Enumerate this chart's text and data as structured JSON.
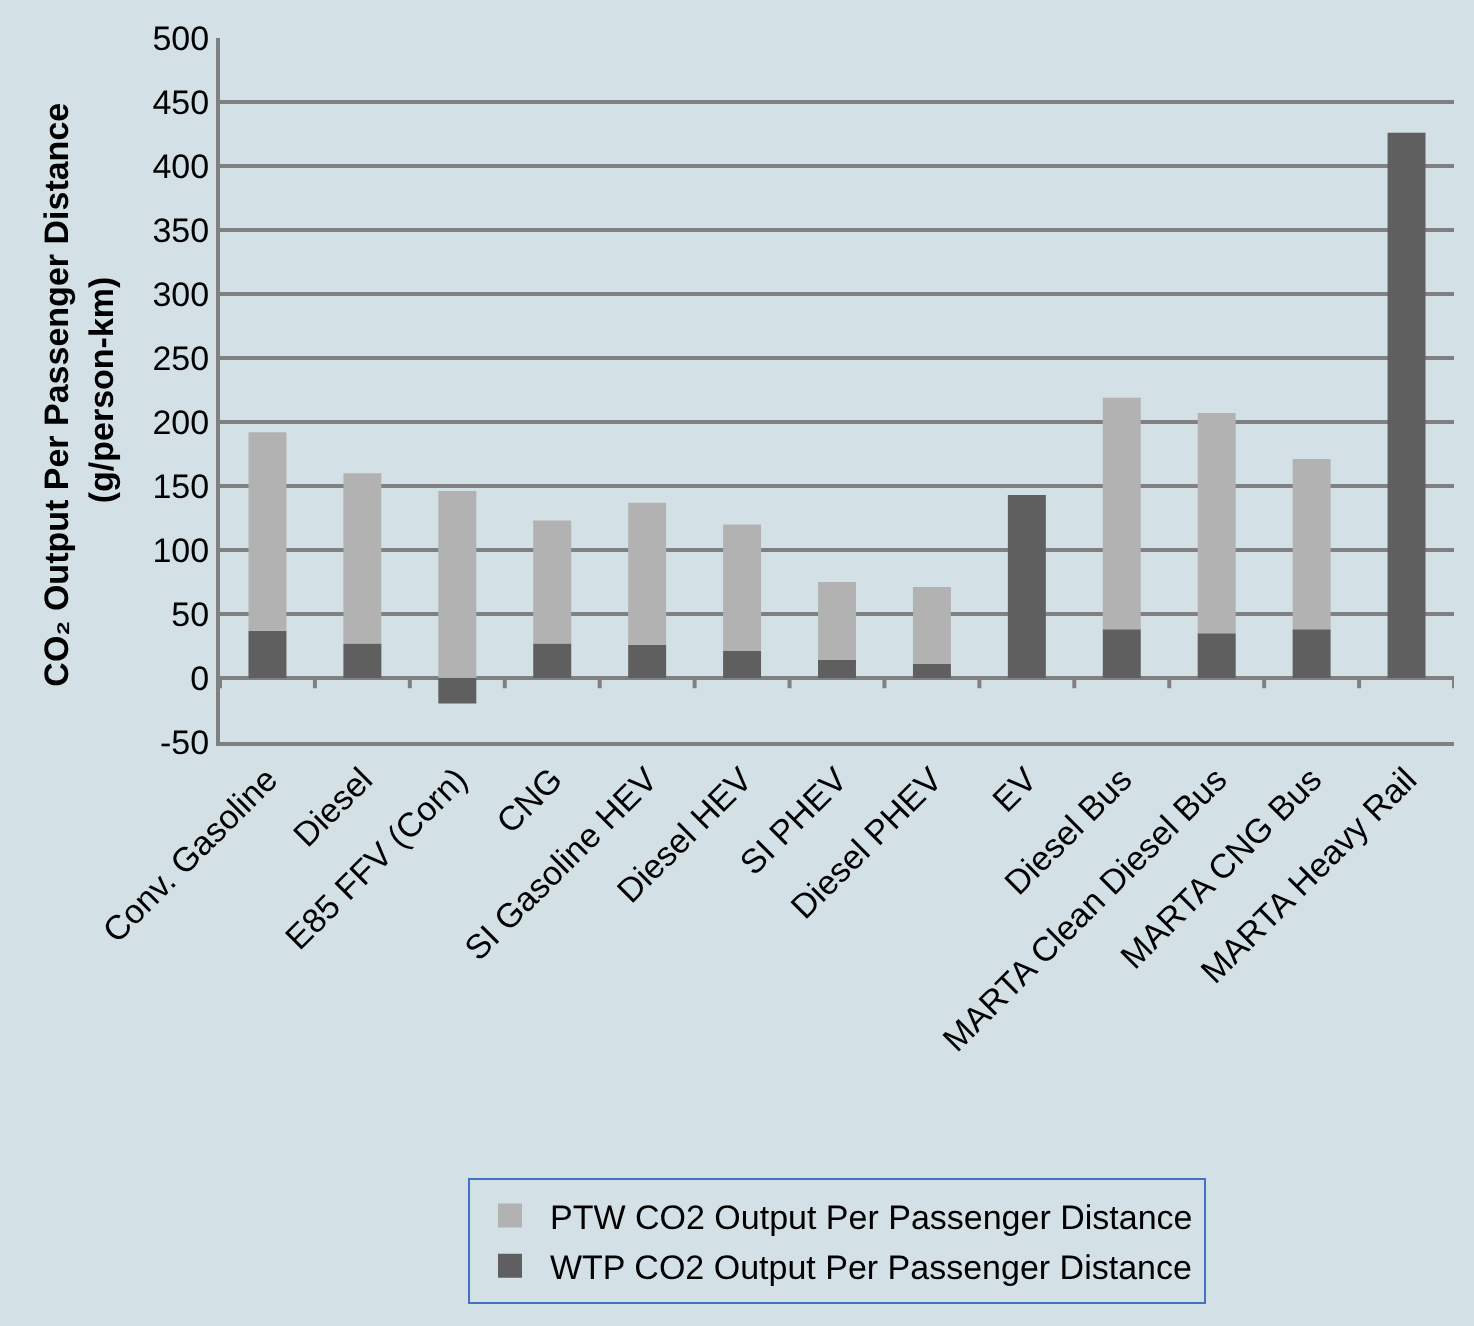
{
  "chart_data": {
    "type": "bar",
    "stacked": true,
    "ylabel": "CO₂ Output Per Passenger Distance (g/person-km)",
    "categories": [
      "Conv. Gasoline",
      "Diesel",
      "E85 FFV (Corn)",
      "CNG",
      "SI Gasoline HEV",
      "Diesel HEV",
      "SI PHEV",
      "Diesel PHEV",
      "EV",
      "Diesel Bus",
      "MARTA Clean Diesel Bus",
      "MARTA CNG Bus",
      "MARTA Heavy Rail"
    ],
    "series": [
      {
        "name": "WTP CO2 Output Per Passenger Distance",
        "color": "#5f5f5f",
        "values": [
          37,
          27,
          -20,
          27,
          26,
          21,
          14,
          11,
          143,
          38,
          35,
          38,
          426
        ]
      },
      {
        "name": "PTW CO2 Output Per Passenger Distance",
        "color": "#b2b2b2",
        "values": [
          155,
          133,
          146,
          96,
          111,
          99,
          61,
          60,
          0,
          181,
          172,
          133,
          0
        ]
      }
    ],
    "ylim": [
      -50,
      500
    ],
    "yticks": [
      -50,
      0,
      50,
      100,
      150,
      200,
      250,
      300,
      350,
      400,
      450,
      500
    ],
    "grid": "y",
    "legend": "bottom"
  }
}
